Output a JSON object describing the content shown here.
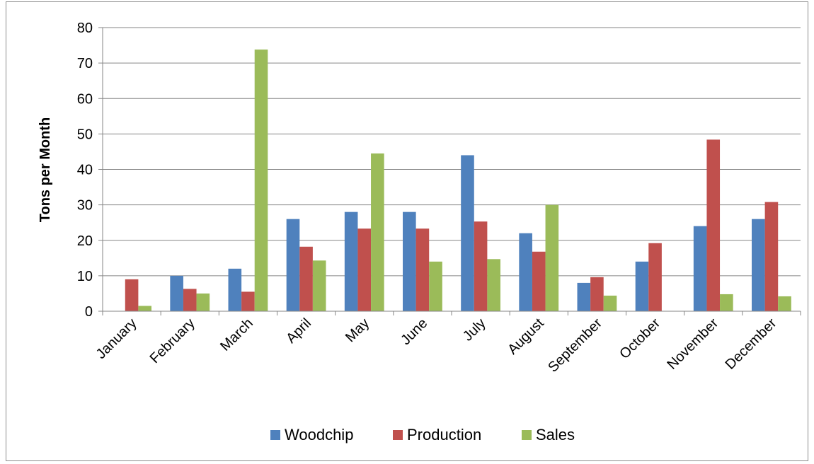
{
  "chart_data": {
    "type": "bar",
    "categories": [
      "January",
      "February",
      "March",
      "April",
      "May",
      "June",
      "July",
      "August",
      "September",
      "October",
      "November",
      "December"
    ],
    "series": [
      {
        "name": "Woodchip",
        "color": "#4f81bd",
        "values": [
          0,
          10,
          12,
          26,
          28,
          28,
          44,
          22,
          8,
          14,
          24,
          26
        ]
      },
      {
        "name": "Production",
        "color": "#c0504d",
        "values": [
          9,
          6.3,
          5.5,
          18.2,
          23.3,
          23.3,
          25.3,
          16.8,
          9.6,
          19.2,
          48.4,
          30.8
        ]
      },
      {
        "name": "Sales",
        "color": "#9bbb59",
        "values": [
          1.5,
          5,
          73.8,
          14.3,
          44.5,
          14,
          14.7,
          30,
          4.4,
          0,
          4.8,
          4.2
        ]
      }
    ],
    "xlabel": "",
    "ylabel": "Tons per Month",
    "ylim": [
      0,
      80
    ],
    "yticks": [
      0,
      10,
      20,
      30,
      40,
      50,
      60,
      70,
      80
    ],
    "grid": true,
    "legend_position": "bottom"
  }
}
